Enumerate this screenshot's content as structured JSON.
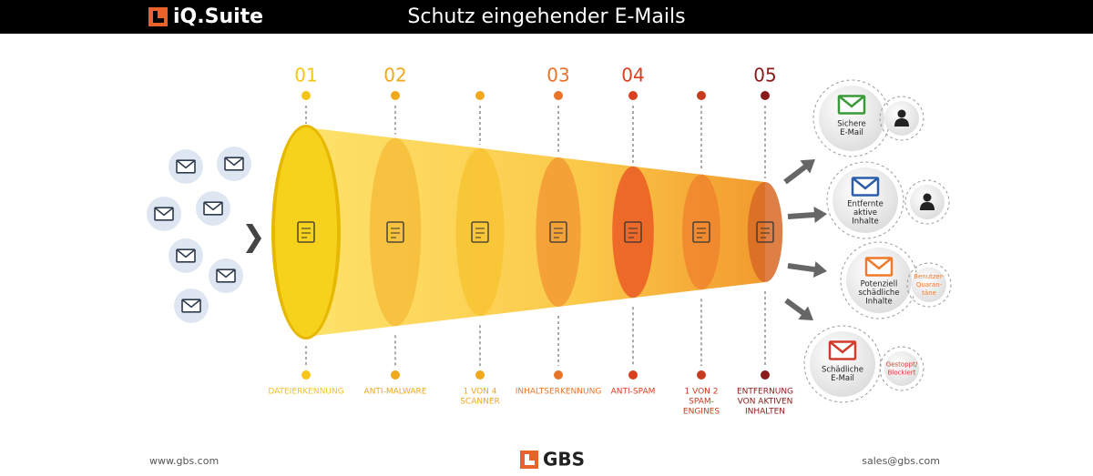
{
  "header": {
    "logo": "iQ.Suite",
    "title": "Schutz eingehender E-Mails"
  },
  "stages": [
    {
      "number": "01",
      "label": [
        "DATEIERKENNUNG"
      ]
    },
    {
      "number": "02",
      "label": [
        "ANTI-MALWARE"
      ]
    },
    {
      "label": [
        "1 VON 4",
        "SCANNER"
      ]
    },
    {
      "number": "03",
      "label": [
        "INHALTSERKENNUNG"
      ]
    },
    {
      "number": "04",
      "label": [
        "ANTI-SPAM"
      ]
    },
    {
      "label": [
        "1 VON 2",
        "SPAM-",
        "ENGINES"
      ]
    },
    {
      "number": "05",
      "label": [
        "ENTFERNUNG",
        "VON AKTIVEN",
        "INHALTEN"
      ]
    }
  ],
  "outcomes": [
    {
      "label": [
        "Sichere",
        "E-Mail"
      ]
    },
    {
      "label": [
        "Entfernte",
        "aktive",
        "Inhalte"
      ]
    },
    {
      "label": [
        "Potenziell",
        "schädliche",
        "Inhalte"
      ],
      "badge": [
        "Benutzer-",
        "Quaran-",
        "täne"
      ]
    },
    {
      "label": [
        "Schädliche",
        "E-Mail"
      ],
      "badge": [
        "Gestoppt/",
        "Blockiert"
      ]
    }
  ],
  "footer": {
    "left": "www.gbs.com",
    "logo": "GBS",
    "right": "sales@gbs.com"
  }
}
